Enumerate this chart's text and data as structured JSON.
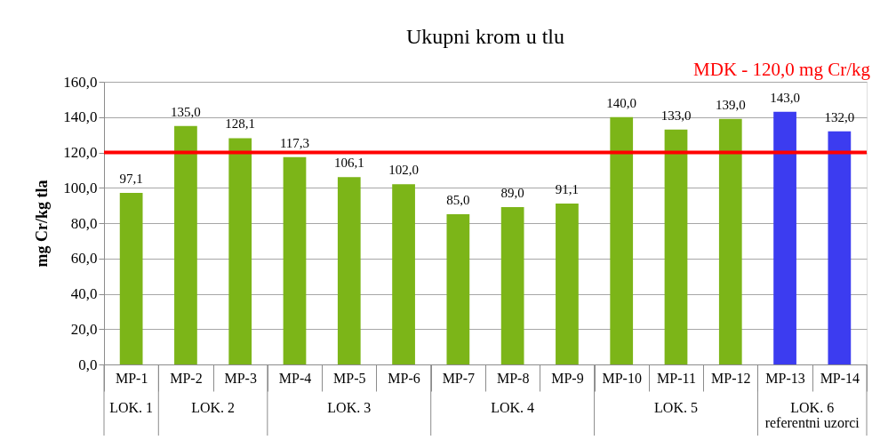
{
  "chart_data": {
    "type": "bar",
    "title": "Ukupni krom u tlu",
    "ylabel": "mg Cr/kg tla",
    "categories": [
      "MP-1",
      "MP-2",
      "MP-3",
      "MP-4",
      "MP-5",
      "MP-6",
      "MP-7",
      "MP-8",
      "MP-9",
      "MP-10",
      "MP-11",
      "MP-12",
      "MP-13",
      "MP-14"
    ],
    "values": [
      97.1,
      135.0,
      128.1,
      117.3,
      106.1,
      102.0,
      85.0,
      89.0,
      91.1,
      140.0,
      133.0,
      139.0,
      143.0,
      132.0
    ],
    "value_labels": [
      "97,1",
      "135,0",
      "128,1",
      "117,3",
      "106,1",
      "102,0",
      "85,0",
      "89,0",
      "91,1",
      "140,0",
      "133,0",
      "139,0",
      "143,0",
      "132,0"
    ],
    "colors": [
      "#7cb518",
      "#7cb518",
      "#7cb518",
      "#7cb518",
      "#7cb518",
      "#7cb518",
      "#7cb518",
      "#7cb518",
      "#7cb518",
      "#7cb518",
      "#7cb518",
      "#7cb518",
      "#3c3cf0",
      "#3c3cf0"
    ],
    "ylim": [
      0,
      160
    ],
    "yticks": [
      {
        "value": 0,
        "label": "0,0"
      },
      {
        "value": 20,
        "label": "20,0"
      },
      {
        "value": 40,
        "label": "40,0"
      },
      {
        "value": 60,
        "label": "60,0"
      },
      {
        "value": 80,
        "label": "80,0"
      },
      {
        "value": 100,
        "label": "100,0"
      },
      {
        "value": 120,
        "label": "120,0"
      },
      {
        "value": 140,
        "label": "140,0"
      },
      {
        "value": 160,
        "label": "160,0"
      }
    ],
    "grid": "y",
    "ref_lines": [
      {
        "axis": "y",
        "value": 120,
        "label": "MDK - 120,0 mg Cr/kg",
        "color": "#ff0000"
      }
    ],
    "annotations": [
      "LOK. 1",
      "LOK. 2",
      "LOK. 3",
      "LOK. 4",
      "LOK. 5",
      "LOK. 6\nreferentni uzorci"
    ]
  }
}
